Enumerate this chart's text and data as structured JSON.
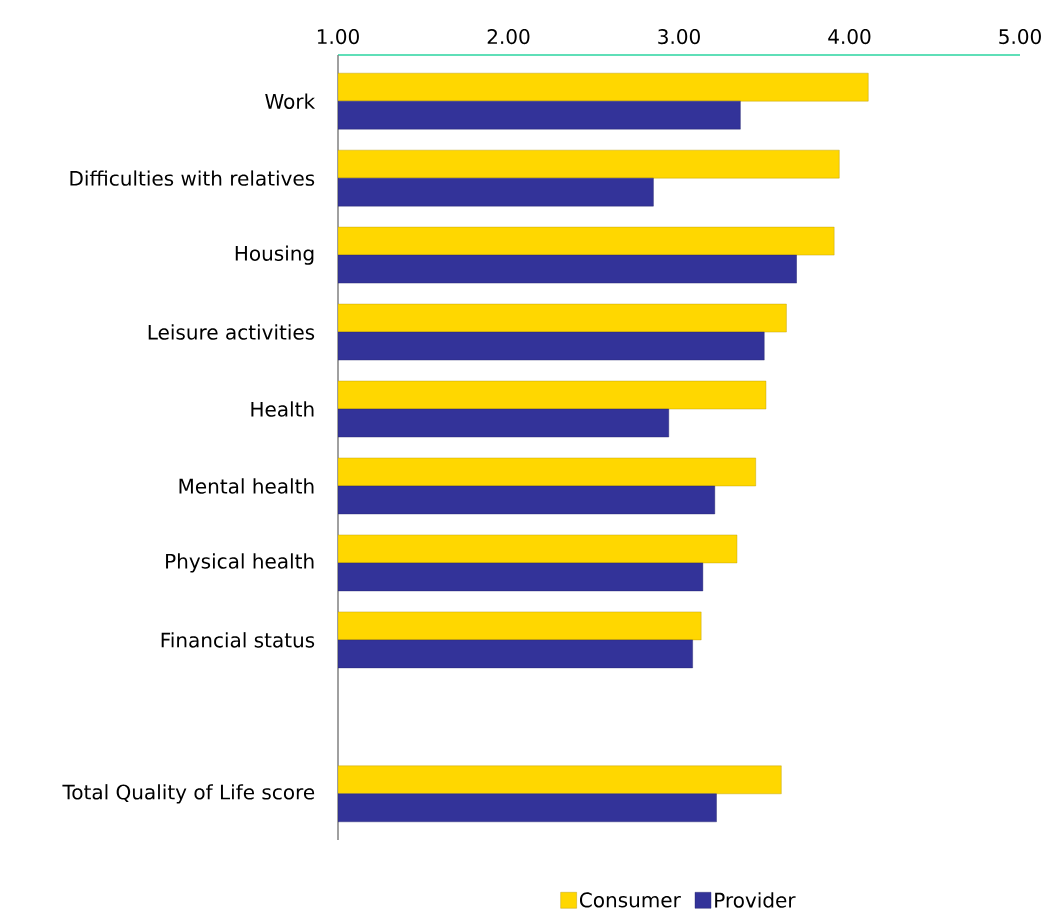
{
  "chart_data": {
    "type": "bar",
    "orientation": "horizontal",
    "categories": [
      "Work",
      "Difficulties with relatives",
      "Housing",
      "Leisure activities",
      "Health",
      "Mental health",
      "Physical health",
      "Financial status",
      null,
      "Total Quality of Life score"
    ],
    "series": [
      {
        "name": "Consumer",
        "color": "#ffd700",
        "values": [
          4.11,
          3.94,
          3.91,
          3.63,
          3.51,
          3.45,
          3.34,
          3.13,
          null,
          3.6
        ]
      },
      {
        "name": "Provider",
        "color": "#333399",
        "values": [
          3.36,
          2.85,
          3.69,
          3.5,
          2.94,
          3.21,
          3.14,
          3.08,
          null,
          3.22
        ]
      }
    ],
    "xlim": [
      1,
      5
    ],
    "xticks": [
      {
        "value": 1,
        "label": "1.00"
      },
      {
        "value": 2,
        "label": "2.00"
      },
      {
        "value": 3,
        "label": "3.00"
      },
      {
        "value": 4,
        "label": "4.00"
      },
      {
        "value": 5,
        "label": "5.00"
      }
    ],
    "grid": false,
    "legend": "bottom"
  }
}
